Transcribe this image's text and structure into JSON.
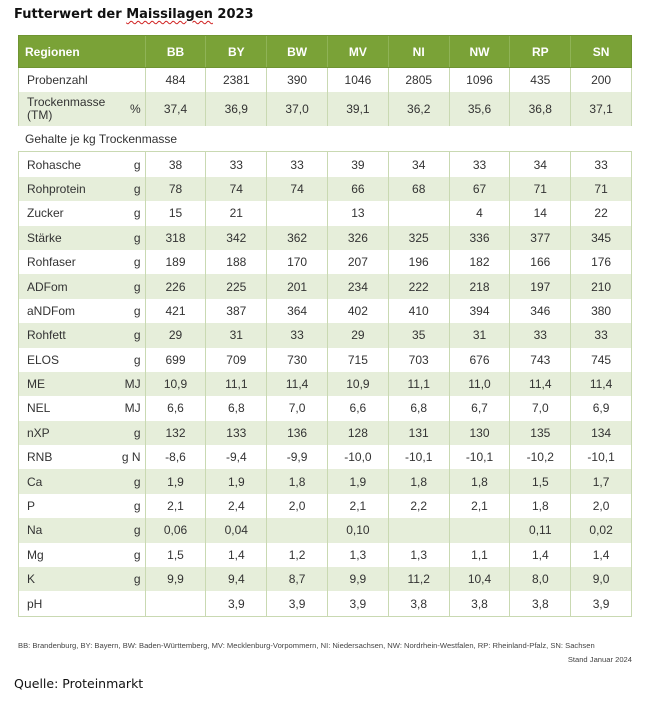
{
  "title": {
    "pre": "Futterwert der ",
    "squiggle": "Maissilagen",
    "post": " 2023"
  },
  "table": {
    "headers": [
      "Regionen",
      "BB",
      "BY",
      "BW",
      "MV",
      "NI",
      "NW",
      "RP",
      "SN"
    ],
    "top_rows": [
      {
        "label": "Probenzahl",
        "unit": "",
        "values": [
          "484",
          "2381",
          "390",
          "1046",
          "2805",
          "1096",
          "435",
          "200"
        ]
      },
      {
        "label": "Trockenmasse (TM)",
        "unit": "%",
        "values": [
          "37,4",
          "36,9",
          "37,0",
          "39,1",
          "36,2",
          "35,6",
          "36,8",
          "37,1"
        ]
      }
    ],
    "section_label": "Gehalte je kg Trockenmasse",
    "rows": [
      {
        "label": "Rohasche",
        "unit": "g",
        "values": [
          "38",
          "33",
          "33",
          "39",
          "34",
          "33",
          "34",
          "33"
        ]
      },
      {
        "label": "Rohprotein",
        "unit": "g",
        "values": [
          "78",
          "74",
          "74",
          "66",
          "68",
          "67",
          "71",
          "71"
        ]
      },
      {
        "label": "Zucker",
        "unit": "g",
        "values": [
          "15",
          "21",
          "",
          "13",
          "",
          "4",
          "14",
          "22"
        ]
      },
      {
        "label": "Stärke",
        "unit": "g",
        "values": [
          "318",
          "342",
          "362",
          "326",
          "325",
          "336",
          "377",
          "345"
        ]
      },
      {
        "label": "Rohfaser",
        "unit": "g",
        "values": [
          "189",
          "188",
          "170",
          "207",
          "196",
          "182",
          "166",
          "176"
        ]
      },
      {
        "label": "ADFom",
        "unit": "g",
        "values": [
          "226",
          "225",
          "201",
          "234",
          "222",
          "218",
          "197",
          "210"
        ]
      },
      {
        "label": "aNDFom",
        "unit": "g",
        "values": [
          "421",
          "387",
          "364",
          "402",
          "410",
          "394",
          "346",
          "380"
        ]
      },
      {
        "label": "Rohfett",
        "unit": "g",
        "values": [
          "29",
          "31",
          "33",
          "29",
          "35",
          "31",
          "33",
          "33"
        ]
      },
      {
        "label": "ELOS",
        "unit": "g",
        "values": [
          "699",
          "709",
          "730",
          "715",
          "703",
          "676",
          "743",
          "745"
        ]
      },
      {
        "label": "ME",
        "unit": "MJ",
        "values": [
          "10,9",
          "11,1",
          "11,4",
          "10,9",
          "11,1",
          "11,0",
          "11,4",
          "11,4"
        ]
      },
      {
        "label": "NEL",
        "unit": "MJ",
        "values": [
          "6,6",
          "6,8",
          "7,0",
          "6,6",
          "6,8",
          "6,7",
          "7,0",
          "6,9"
        ]
      },
      {
        "label": "nXP",
        "unit": "g",
        "values": [
          "132",
          "133",
          "136",
          "128",
          "131",
          "130",
          "135",
          "134"
        ]
      },
      {
        "label": "RNB",
        "unit": "g N",
        "values": [
          "-8,6",
          "-9,4",
          "-9,9",
          "-10,0",
          "-10,1",
          "-10,1",
          "-10,2",
          "-10,1"
        ]
      },
      {
        "label": "Ca",
        "unit": "g",
        "values": [
          "1,9",
          "1,9",
          "1,8",
          "1,9",
          "1,8",
          "1,8",
          "1,5",
          "1,7"
        ]
      },
      {
        "label": "P",
        "unit": "g",
        "values": [
          "2,1",
          "2,4",
          "2,0",
          "2,1",
          "2,2",
          "2,1",
          "1,8",
          "2,0"
        ]
      },
      {
        "label": "Na",
        "unit": "g",
        "values": [
          "0,06",
          "0,04",
          "",
          "0,10",
          "",
          "",
          "0,11",
          "0,02"
        ]
      },
      {
        "label": "Mg",
        "unit": "g",
        "values": [
          "1,5",
          "1,4",
          "1,2",
          "1,3",
          "1,3",
          "1,1",
          "1,4",
          "1,4"
        ]
      },
      {
        "label": "K",
        "unit": "g",
        "values": [
          "9,9",
          "9,4",
          "8,7",
          "9,9",
          "11,2",
          "10,4",
          "8,0",
          "9,0"
        ]
      },
      {
        "label": "pH",
        "unit": "",
        "values": [
          "",
          "3,9",
          "3,9",
          "3,9",
          "3,8",
          "3,8",
          "3,8",
          "3,9"
        ]
      }
    ]
  },
  "footnote": "BB: Brandenburg, BY: Bayern, BW: Baden-Württemberg, MV: Mecklenburg-Vorpommern, NI: Niedersachsen, NW: Nordrhein-Westfalen, RP: Rheinland-Pfalz, SN: Sachsen",
  "stand": "Stand Januar 2024",
  "source": "Quelle: Proteinmarkt",
  "colors": {
    "header_green": "#7aa237",
    "stripe": "#e6eeda",
    "grid": "#c9d9b2"
  }
}
